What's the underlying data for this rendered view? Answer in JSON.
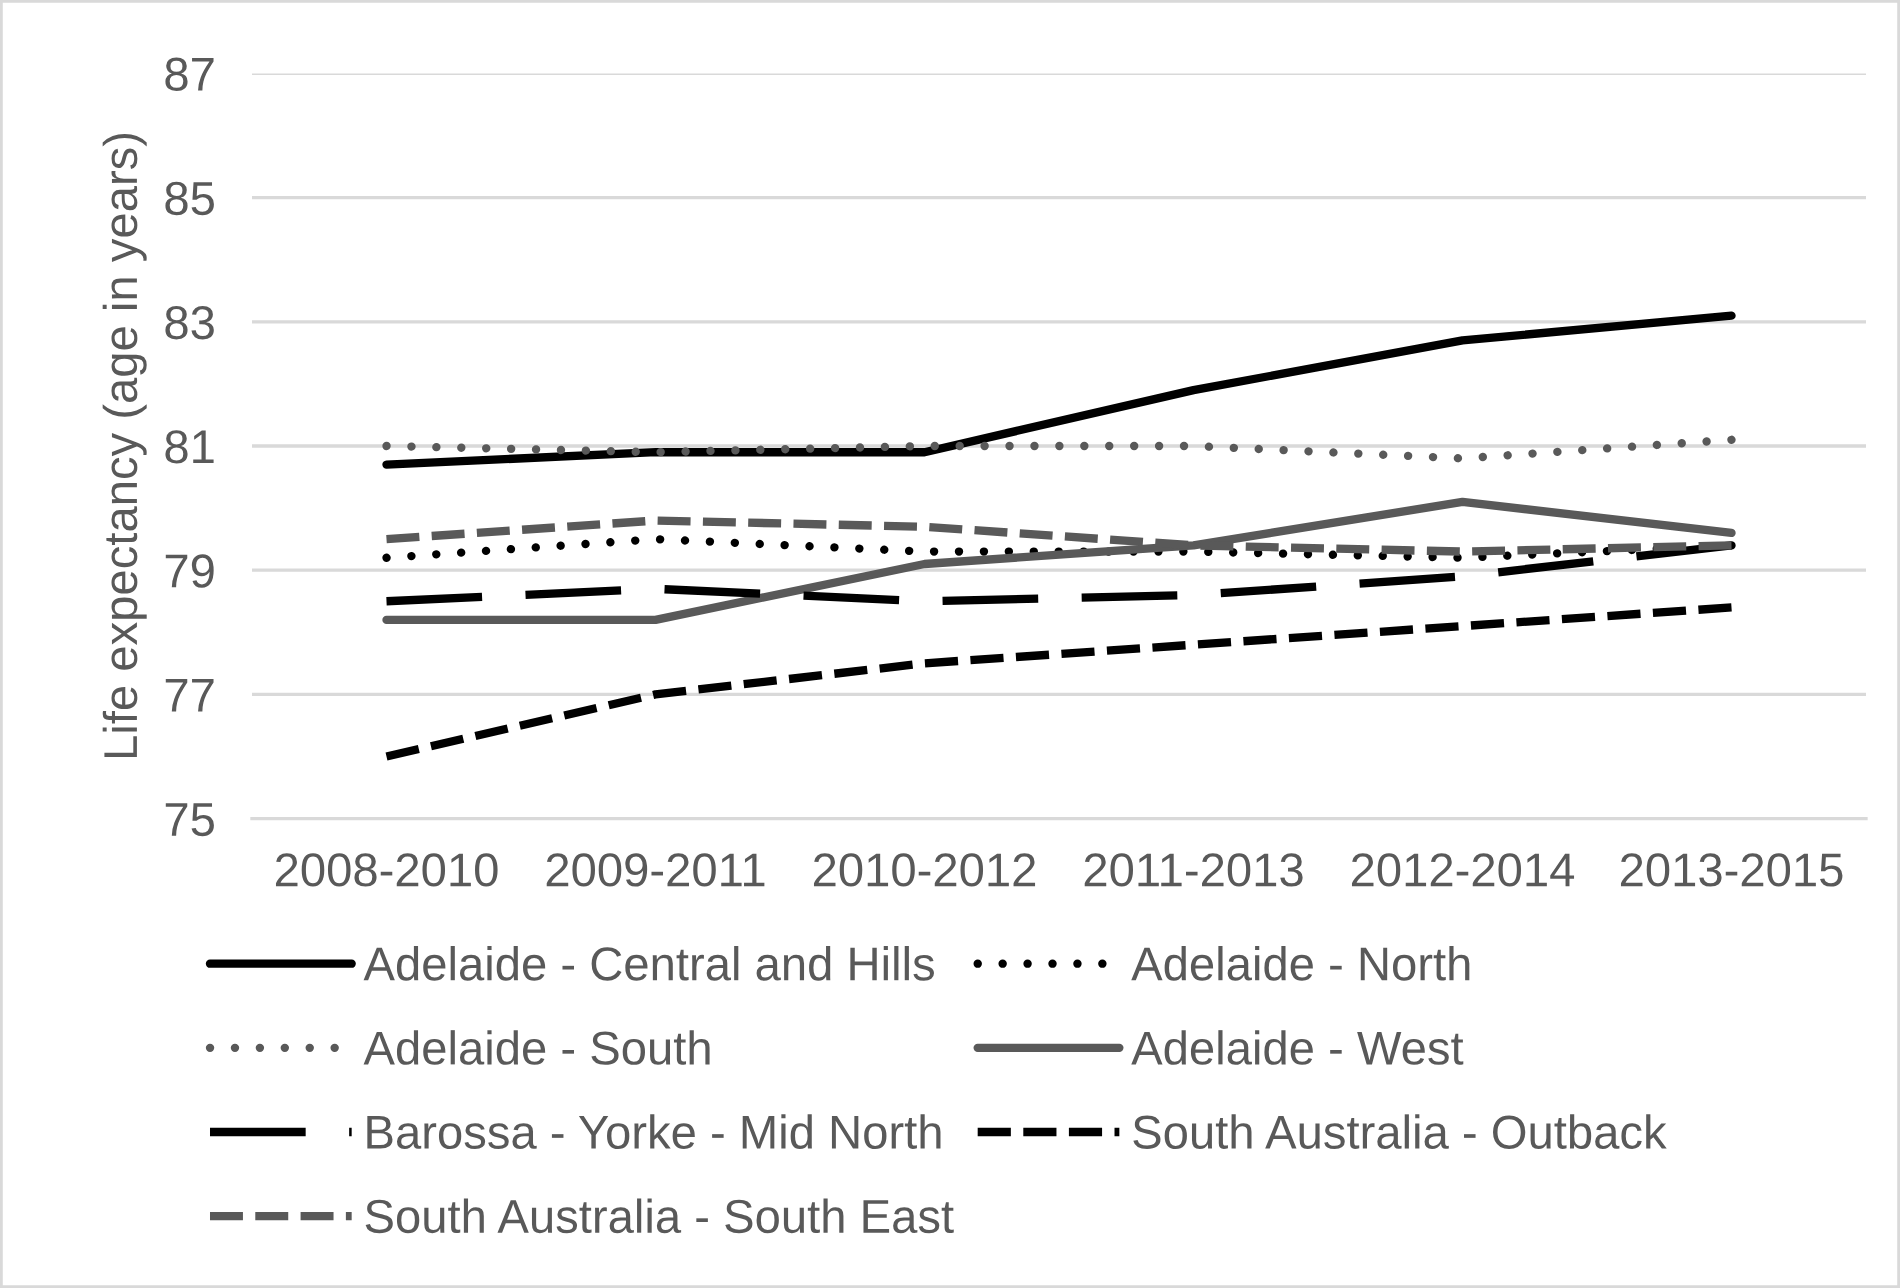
{
  "chart_data": {
    "type": "line",
    "ylabel": "Life expectancy (age in years)",
    "categories": [
      "2008-2010",
      "2009-2011",
      "2010-2012",
      "2011-2013",
      "2012-2014",
      "2013-2015"
    ],
    "ylim": [
      75,
      87
    ],
    "yticks": [
      75,
      77,
      79,
      81,
      83,
      85,
      87
    ],
    "grid": "y",
    "legend": "bottom",
    "marker": "none",
    "series": [
      {
        "name": "Adelaide - Central and Hills",
        "color": "#000000",
        "line_style": "solid",
        "values": [
          80.7,
          80.9,
          80.9,
          81.9,
          82.7,
          83.1
        ]
      },
      {
        "name": "Adelaide - North",
        "color": "#000000",
        "line_style": "dotted",
        "values": [
          79.2,
          79.5,
          79.3,
          79.3,
          79.2,
          79.4
        ]
      },
      {
        "name": "Adelaide - South",
        "color": "#595959",
        "line_style": "dotted",
        "values": [
          81.0,
          80.9,
          81.0,
          81.0,
          80.8,
          81.1
        ]
      },
      {
        "name": "Adelaide - West",
        "color": "#595959",
        "line_style": "solid",
        "values": [
          78.2,
          78.2,
          79.1,
          79.4,
          80.1,
          79.6
        ]
      },
      {
        "name": "Barossa - Yorke - Mid North",
        "color": "#000000",
        "line_style": "long dashed",
        "values": [
          78.5,
          78.7,
          78.5,
          78.6,
          78.9,
          79.4
        ]
      },
      {
        "name": "South Australia - Outback",
        "color": "#000000",
        "line_style": "dashed",
        "values": [
          76.0,
          77.0,
          77.5,
          77.8,
          78.1,
          78.4
        ]
      },
      {
        "name": "South Australia - South East",
        "color": "#595959",
        "line_style": "dashed",
        "values": [
          79.5,
          79.8,
          79.7,
          79.4,
          79.3,
          79.4
        ]
      }
    ]
  }
}
